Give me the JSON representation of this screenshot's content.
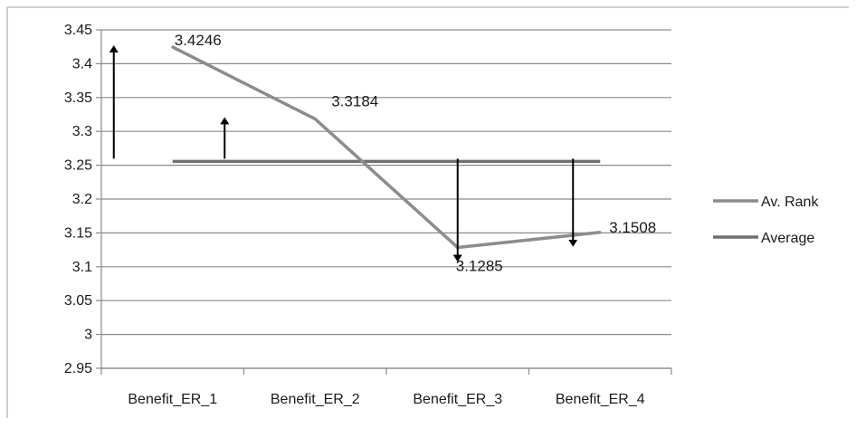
{
  "chart_data": {
    "type": "line",
    "categories": [
      "Benefit_ER_1",
      "Benefit_ER_2",
      "Benefit_ER_3",
      "Benefit_ER_4"
    ],
    "series": [
      {
        "name": "Av. Rank",
        "values": [
          3.4246,
          3.3184,
          3.1285,
          3.1508
        ],
        "color": "#8c8c8c",
        "data_labels": [
          "3.4246",
          "3.3184",
          "3.1285",
          "3.1508"
        ]
      },
      {
        "name": "Average",
        "values": [
          3.2556,
          3.2556,
          3.2556,
          3.2556
        ],
        "color": "#707070"
      }
    ],
    "ylim": [
      2.95,
      3.45
    ],
    "yticks": [
      "2.95",
      "3",
      "3.05",
      "3.1",
      "3.15",
      "3.2",
      "3.25",
      "3.3",
      "3.35",
      "3.4",
      "3.45"
    ],
    "grid": true,
    "legend_position": "right",
    "arrows": [
      {
        "category": "Benefit_ER_1",
        "from": 3.2556,
        "to": 3.4246,
        "direction": "up"
      },
      {
        "category": "Benefit_ER_2",
        "from": 3.2556,
        "to": 3.3184,
        "direction": "up"
      },
      {
        "category": "Benefit_ER_3",
        "from": 3.2556,
        "to": 3.1285,
        "direction": "down"
      },
      {
        "category": "Benefit_ER_4",
        "from": 3.2556,
        "to": 3.1508,
        "direction": "down"
      }
    ]
  }
}
